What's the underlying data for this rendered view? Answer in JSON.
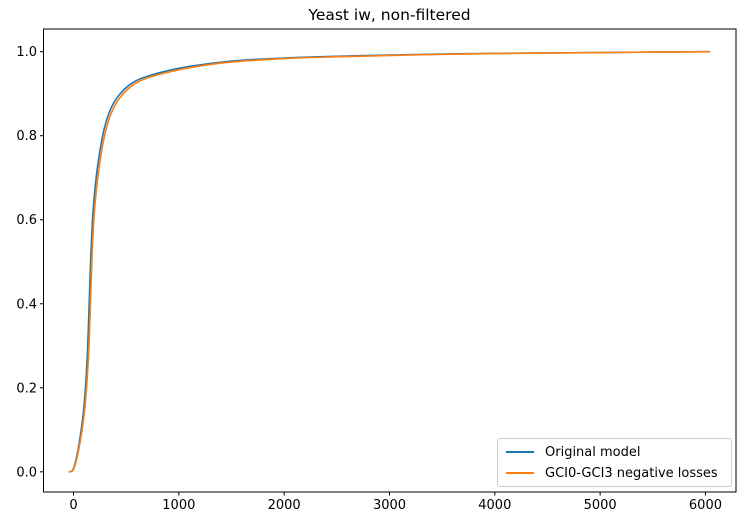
{
  "chart_data": {
    "type": "line",
    "title": "Yeast iw, non-filtered",
    "xlabel": "",
    "ylabel": "",
    "grid": false,
    "legend_position": "lower right",
    "xlim": [
      -285,
      6290
    ],
    "ylim": [
      -0.048,
      1.054
    ],
    "xticks": {
      "values": [
        0,
        1000,
        2000,
        3000,
        4000,
        5000,
        6000
      ],
      "labels": [
        "0",
        "1000",
        "2000",
        "3000",
        "4000",
        "5000",
        "6000"
      ]
    },
    "yticks": {
      "values": [
        0.0,
        0.2,
        0.4,
        0.6,
        0.8,
        1.0
      ],
      "labels": [
        "0.0",
        "0.2",
        "0.4",
        "0.6",
        "0.8",
        "1.0"
      ]
    },
    "series": [
      {
        "name": "Original model",
        "color": "#1f77b4",
        "points": [
          [
            -40,
            0.0
          ],
          [
            -15,
            0.002
          ],
          [
            0,
            0.008
          ],
          [
            20,
            0.025
          ],
          [
            45,
            0.055
          ],
          [
            70,
            0.095
          ],
          [
            95,
            0.145
          ],
          [
            115,
            0.205
          ],
          [
            135,
            0.3
          ],
          [
            150,
            0.41
          ],
          [
            165,
            0.52
          ],
          [
            180,
            0.6
          ],
          [
            195,
            0.65
          ],
          [
            215,
            0.7
          ],
          [
            245,
            0.755
          ],
          [
            290,
            0.815
          ],
          [
            350,
            0.862
          ],
          [
            430,
            0.896
          ],
          [
            560,
            0.926
          ],
          [
            720,
            0.943
          ],
          [
            1010,
            0.961
          ],
          [
            1300,
            0.972
          ],
          [
            1560,
            0.979
          ],
          [
            2000,
            0.985
          ],
          [
            2500,
            0.989
          ],
          [
            3000,
            0.992
          ],
          [
            3430,
            0.994
          ],
          [
            4000,
            0.996
          ],
          [
            4500,
            0.997
          ],
          [
            5000,
            0.998
          ],
          [
            5500,
            0.999
          ],
          [
            6030,
            1.0
          ]
        ]
      },
      {
        "name": "GCI0-GCI3 negative losses",
        "color": "#ff7f0e",
        "points": [
          [
            -40,
            0.0
          ],
          [
            -10,
            0.002
          ],
          [
            5,
            0.009
          ],
          [
            28,
            0.028
          ],
          [
            55,
            0.06
          ],
          [
            82,
            0.1
          ],
          [
            107,
            0.15
          ],
          [
            127,
            0.21
          ],
          [
            147,
            0.3
          ],
          [
            162,
            0.41
          ],
          [
            177,
            0.52
          ],
          [
            192,
            0.595
          ],
          [
            207,
            0.645
          ],
          [
            227,
            0.693
          ],
          [
            257,
            0.748
          ],
          [
            302,
            0.808
          ],
          [
            362,
            0.856
          ],
          [
            442,
            0.891
          ],
          [
            572,
            0.922
          ],
          [
            732,
            0.94
          ],
          [
            1022,
            0.958
          ],
          [
            1310,
            0.97
          ],
          [
            1580,
            0.977
          ],
          [
            2020,
            0.984
          ],
          [
            2520,
            0.988
          ],
          [
            3020,
            0.991
          ],
          [
            3440,
            0.9935
          ],
          [
            4010,
            0.9955
          ],
          [
            4510,
            0.9968
          ],
          [
            5010,
            0.998
          ],
          [
            5510,
            0.999
          ],
          [
            6040,
            1.0
          ]
        ]
      }
    ],
    "axes_color": "#000000"
  }
}
